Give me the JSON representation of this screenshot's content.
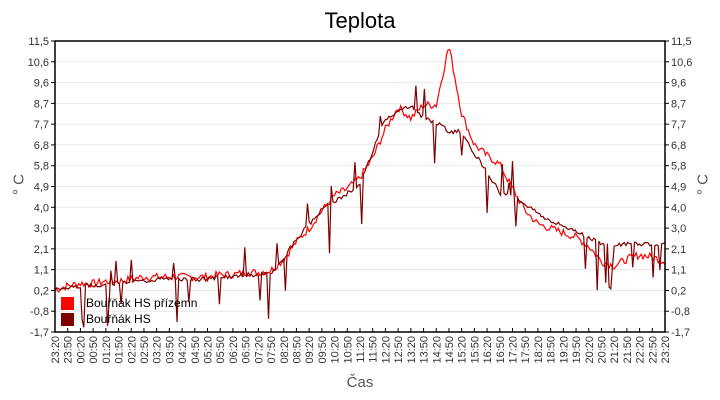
{
  "chart_data": {
    "type": "line",
    "title": "Teplota",
    "xlabel": "Čas",
    "ylabel": "° C",
    "ylabel_right": "° C",
    "ylim": [
      -1.7,
      11.5
    ],
    "y_ticks": [
      "11,5",
      "10,6",
      "9,6",
      "8,7",
      "7,7",
      "6,8",
      "5,8",
      "4,9",
      "4,0",
      "3,0",
      "2,1",
      "1,1",
      "0,2",
      "-0,8",
      "-1,7"
    ],
    "x_ticks": [
      "23:20",
      "23:50",
      "00:20",
      "00:50",
      "01:20",
      "01:50",
      "02:20",
      "02:50",
      "03:20",
      "03:50",
      "04:20",
      "04:50",
      "05:20",
      "05:50",
      "06:20",
      "06:50",
      "07:20",
      "07:50",
      "08:20",
      "08:50",
      "09:20",
      "09:50",
      "10:20",
      "10:50",
      "11:20",
      "11:50",
      "12:20",
      "12:50",
      "13:20",
      "13:50",
      "14:20",
      "14:50",
      "15:20",
      "15:50",
      "16:20",
      "16:50",
      "17:20",
      "17:50",
      "18:20",
      "18:50",
      "19:20",
      "19:50",
      "20:20",
      "20:50",
      "21:20",
      "21:50",
      "22:20",
      "22:50",
      "23:20"
    ],
    "grid": true,
    "legend_position": "lower-left inside",
    "series": [
      {
        "name": "Bouřňák HS přízemn",
        "color": "#ff0000",
        "values": [
          0.2,
          0.4,
          0.5,
          0.5,
          0.6,
          0.6,
          0.7,
          0.8,
          0.8,
          0.8,
          0.8,
          0.8,
          0.8,
          0.9,
          0.9,
          1.0,
          1.0,
          1.1,
          1.6,
          2.4,
          3.0,
          3.8,
          4.5,
          4.8,
          5.3,
          6.2,
          7.5,
          8.5,
          8.0,
          8.6,
          8.6,
          11.3,
          8.2,
          6.8,
          6.3,
          5.9,
          4.8,
          3.8,
          3.2,
          3.0,
          2.8,
          2.6,
          2.2,
          1.5,
          1.3,
          1.6,
          1.8,
          1.7,
          1.5
        ]
      },
      {
        "name": "Bouřňák HS",
        "color": "#800000",
        "values": [
          0.3,
          0.3,
          0.4,
          0.4,
          0.5,
          0.5,
          0.6,
          0.6,
          0.7,
          0.7,
          0.7,
          0.7,
          0.7,
          0.8,
          0.8,
          0.9,
          0.9,
          0.9,
          1.7,
          2.5,
          3.2,
          3.9,
          4.2,
          4.6,
          5.0,
          6.5,
          8.0,
          8.3,
          8.6,
          8.0,
          7.8,
          7.4,
          7.4,
          6.4,
          5.6,
          4.6,
          4.5,
          4.1,
          3.7,
          3.3,
          3.1,
          2.9,
          2.6,
          2.3,
          2.2,
          2.3,
          2.3,
          2.3,
          2.3
        ]
      }
    ]
  },
  "legend": {
    "items": [
      {
        "label": "Bouřňák HS přízemn",
        "color": "#ff0000"
      },
      {
        "label": "Bouřňák HS",
        "color": "#800000"
      }
    ]
  }
}
